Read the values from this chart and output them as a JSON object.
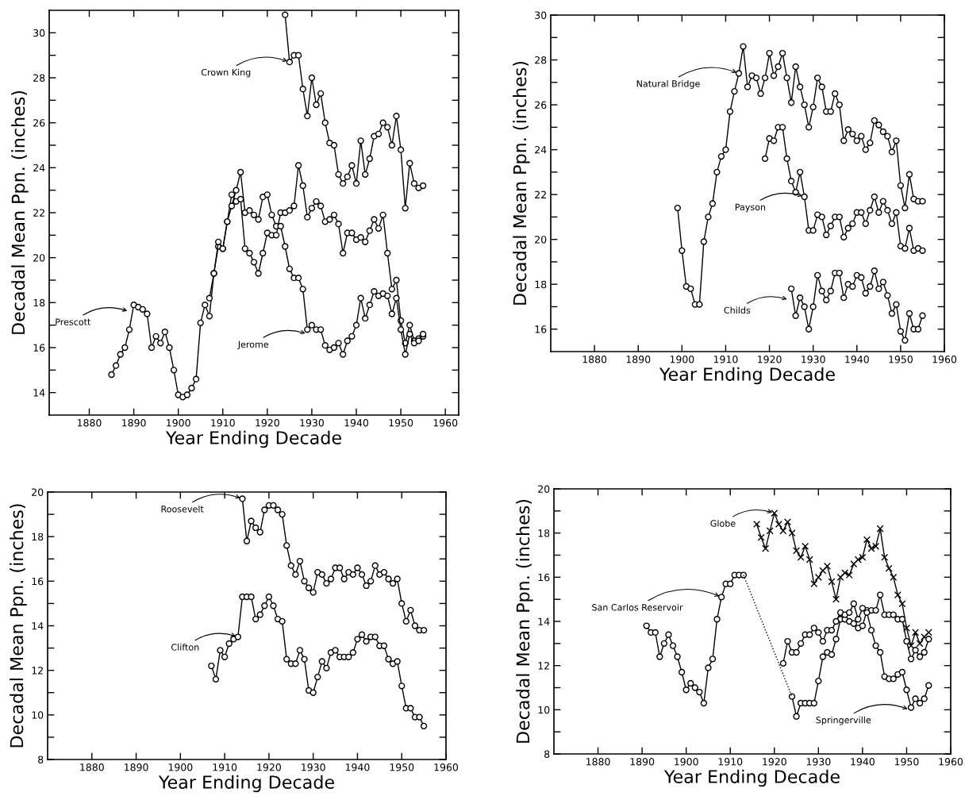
{
  "chart_data": [
    {
      "type": "line",
      "xlabel": "Year Ending Decade",
      "ylabel": "Decadal Mean Ppn. (inches)",
      "marker": "circle",
      "grid": false,
      "xlim": [
        1871,
        1963
      ],
      "xticks": [
        1880,
        1890,
        1900,
        1910,
        1920,
        1930,
        1940,
        1950,
        1960
      ],
      "ylim": [
        13,
        31
      ],
      "yticks": [
        14,
        {
          "value": 15,
          "label": null
        },
        16,
        {
          "value": 17,
          "label": null
        },
        18,
        {
          "value": 19,
          "label": null
        },
        20,
        {
          "value": 21,
          "label": null
        },
        22,
        {
          "value": 23,
          "label": null
        },
        24,
        {
          "value": 25,
          "label": null
        },
        26,
        {
          "value": 27,
          "label": null
        },
        28,
        {
          "value": 29,
          "label": null
        },
        30
      ],
      "series": [
        {
          "color": "#000000",
          "x": [
            1885,
            1886,
            1887,
            1888,
            1889,
            1890,
            1891,
            1892,
            1893,
            1894,
            1895,
            1896,
            1897,
            1898,
            1899,
            1900,
            1901,
            1902,
            1903,
            1904,
            1905,
            1906,
            1907,
            1908,
            1909,
            1910,
            1911,
            1912,
            1913,
            1914,
            1915,
            1916,
            1917,
            1918,
            1919,
            1920,
            1921,
            1922,
            1923,
            1924,
            1925,
            1926,
            1927,
            1928,
            1929,
            1930,
            1931,
            1932,
            1933,
            1934,
            1935,
            1936,
            1937,
            1938,
            1939,
            1940,
            1941,
            1942,
            1943,
            1944,
            1945,
            1946,
            1947,
            1948,
            1949,
            1950,
            1951,
            1952,
            1953,
            1954,
            1955
          ],
          "values": [
            14.8,
            15.2,
            15.7,
            16.0,
            16.8,
            17.9,
            17.8,
            17.7,
            17.5,
            16.0,
            16.5,
            16.2,
            16.7,
            16.0,
            15.0,
            13.9,
            13.8,
            13.9,
            14.2,
            14.6,
            17.1,
            17.9,
            17.4,
            19.3,
            20.5,
            20.4,
            21.6,
            22.8,
            22.5,
            22.6,
            20.4,
            20.2,
            19.8,
            19.3,
            20.2,
            21.1,
            21.0,
            21.0,
            22.0,
            22.0,
            22.1,
            22.3,
            24.1,
            23.2,
            21.8,
            22.2,
            22.5,
            22.3,
            21.6,
            21.7,
            21.9,
            21.5,
            20.2,
            21.1,
            21.1,
            20.8,
            20.9,
            20.7,
            21.2,
            21.7,
            21.3,
            21.9,
            20.2,
            18.6,
            19.0,
            17.2,
            16.2,
            17.0,
            16.3,
            16.4,
            16.5
          ]
        },
        {
          "color": "#000000",
          "x": [
            1907,
            1908,
            1909,
            1910,
            1911,
            1912,
            1913,
            1914,
            1915,
            1916,
            1917,
            1918,
            1919,
            1920,
            1921,
            1922,
            1923,
            1924,
            1925,
            1926,
            1927,
            1928,
            1929,
            1930,
            1931,
            1932,
            1933,
            1934,
            1935,
            1936,
            1937,
            1938,
            1939,
            1940,
            1941,
            1942,
            1943,
            1944,
            1945,
            1946,
            1947,
            1948,
            1949,
            1950,
            1951,
            1952,
            1953,
            1954,
            1955
          ],
          "values": [
            18.2,
            19.3,
            20.7,
            20.4,
            21.6,
            22.3,
            23.0,
            23.8,
            22.0,
            22.1,
            21.9,
            21.7,
            22.7,
            22.8,
            21.9,
            21.4,
            21.4,
            20.5,
            19.5,
            19.1,
            19.1,
            18.6,
            16.8,
            17.0,
            16.8,
            16.8,
            16.1,
            15.9,
            16.0,
            16.2,
            15.7,
            16.3,
            16.5,
            17.0,
            18.2,
            17.3,
            17.9,
            18.5,
            18.3,
            18.4,
            18.3,
            17.5,
            18.2,
            16.8,
            15.7,
            16.6,
            16.2,
            16.3,
            16.6
          ]
        },
        {
          "color": "#000000",
          "x": [
            1924,
            1925,
            1926,
            1927,
            1928,
            1929,
            1930,
            1931,
            1932,
            1933,
            1934,
            1935,
            1936,
            1937,
            1938,
            1939,
            1940,
            1941,
            1942,
            1943,
            1944,
            1945,
            1946,
            1947,
            1948,
            1949,
            1950,
            1951,
            1952,
            1953,
            1954,
            1955
          ],
          "values": [
            30.8,
            28.7,
            29.0,
            29.0,
            27.5,
            26.3,
            28.0,
            26.8,
            27.3,
            26.0,
            25.1,
            25.0,
            23.7,
            23.3,
            23.6,
            24.1,
            23.3,
            25.2,
            23.7,
            24.4,
            25.4,
            25.5,
            26.0,
            25.8,
            25.0,
            26.3,
            24.8,
            22.2,
            24.2,
            23.3,
            23.1,
            23.2
          ]
        }
      ],
      "annotations": [
        {
          "text": "Prescott",
          "x": 1889,
          "y": 17.6
        },
        {
          "text": "Crown King",
          "x": 1925,
          "y": 28.7
        },
        {
          "text": "Jerome",
          "x": 1929,
          "y": 16.6
        }
      ]
    },
    {
      "type": "line",
      "xlabel": "Year Ending Decade",
      "ylabel": "Decadal Mean Ppn. (inches)",
      "marker": "circle",
      "grid": false,
      "xlim": [
        1870,
        1960
      ],
      "xticks": [
        1880,
        1890,
        1900,
        1910,
        1920,
        1930,
        1940,
        1950,
        1960
      ],
      "ylim": [
        15,
        30
      ],
      "yticks": [
        16,
        {
          "value": 17,
          "label": null
        },
        18,
        {
          "value": 19,
          "label": null
        },
        20,
        {
          "value": 21,
          "label": null
        },
        22,
        {
          "value": 23,
          "label": null
        },
        24,
        {
          "value": 25,
          "label": null
        },
        26,
        {
          "value": 27,
          "label": null
        },
        28,
        {
          "value": 29,
          "label": null
        },
        30
      ],
      "series": [
        {
          "color": "#000000",
          "x": [
            1899,
            1900,
            1901,
            1902,
            1903,
            1904,
            1905,
            1906,
            1907,
            1908,
            1909,
            1910,
            1911,
            1912,
            1913,
            1914,
            1915,
            1916,
            1917,
            1918,
            1919,
            1920,
            1921,
            1922,
            1923,
            1924,
            1925,
            1926,
            1927,
            1928,
            1929,
            1930,
            1931,
            1932,
            1933,
            1934,
            1935,
            1936,
            1937,
            1938,
            1939,
            1940,
            1941,
            1942,
            1943,
            1944,
            1945,
            1946,
            1947,
            1948,
            1949,
            1950,
            1951,
            1952,
            1953,
            1954,
            1955
          ],
          "values": [
            21.4,
            19.5,
            17.9,
            17.8,
            17.1,
            17.1,
            19.9,
            21.0,
            21.6,
            23.0,
            23.7,
            24.0,
            25.7,
            26.6,
            27.4,
            28.6,
            26.8,
            27.3,
            27.2,
            26.5,
            27.2,
            28.3,
            27.3,
            27.7,
            28.3,
            27.2,
            26.1,
            27.7,
            26.8,
            26.0,
            25.0,
            25.9,
            27.2,
            26.8,
            25.7,
            25.7,
            26.5,
            26.0,
            24.4,
            24.9,
            24.7,
            24.4,
            24.6,
            24.0,
            24.3,
            25.3,
            25.1,
            24.8,
            24.6,
            23.9,
            24.4,
            22.4,
            21.4,
            22.9,
            21.8,
            21.7,
            21.7
          ]
        },
        {
          "color": "#000000",
          "x": [
            1919,
            1920,
            1921,
            1922,
            1923,
            1924,
            1925,
            1926,
            1927,
            1928,
            1929,
            1930,
            1931,
            1932,
            1933,
            1934,
            1935,
            1936,
            1937,
            1938,
            1939,
            1940,
            1941,
            1942,
            1943,
            1944,
            1945,
            1946,
            1947,
            1948,
            1949,
            1950,
            1951,
            1952,
            1953,
            1954,
            1955
          ],
          "values": [
            23.6,
            24.5,
            24.4,
            25.0,
            25.0,
            23.6,
            22.6,
            22.1,
            23.0,
            21.9,
            20.4,
            20.4,
            21.1,
            21.0,
            20.2,
            20.6,
            21.0,
            21.0,
            20.1,
            20.5,
            20.7,
            21.2,
            21.2,
            20.7,
            21.3,
            21.9,
            21.2,
            21.7,
            21.3,
            20.7,
            21.2,
            19.7,
            19.6,
            20.5,
            19.5,
            19.6,
            19.5
          ]
        },
        {
          "color": "#000000",
          "x": [
            1925,
            1926,
            1927,
            1928,
            1929,
            1930,
            1931,
            1932,
            1933,
            1934,
            1935,
            1936,
            1937,
            1938,
            1939,
            1940,
            1941,
            1942,
            1943,
            1944,
            1945,
            1946,
            1947,
            1948,
            1949,
            1950,
            1951,
            1952,
            1953,
            1954,
            1955
          ],
          "values": [
            17.8,
            16.6,
            17.4,
            17.0,
            16.0,
            17.0,
            18.4,
            17.7,
            17.3,
            17.7,
            18.5,
            18.5,
            17.4,
            18.0,
            17.9,
            18.4,
            18.3,
            17.6,
            17.9,
            18.6,
            17.8,
            18.1,
            17.5,
            16.7,
            17.1,
            15.9,
            15.5,
            16.7,
            16.0,
            16.0,
            16.6
          ]
        }
      ],
      "annotations": [
        {
          "text": "Natural Bridge",
          "x": 1913,
          "y": 27.4
        },
        {
          "text": "Payson",
          "x": 1928,
          "y": 21.9
        },
        {
          "text": "Childs",
          "x": 1924.5,
          "y": 17.3
        }
      ]
    },
    {
      "type": "line",
      "xlabel": "Year Ending Decade",
      "ylabel": "Decadal Mean Ppn. (inches)",
      "marker": "circle",
      "grid": false,
      "xlim": [
        1870,
        1960
      ],
      "xticks": [
        1880,
        1890,
        1900,
        1910,
        1920,
        1930,
        1940,
        1950,
        1960
      ],
      "ylim": [
        8,
        20
      ],
      "yticks": [
        8,
        {
          "value": 9,
          "label": null
        },
        10,
        {
          "value": 11,
          "label": null
        },
        12,
        {
          "value": 13,
          "label": null
        },
        14,
        {
          "value": 15,
          "label": null
        },
        16,
        {
          "value": 17,
          "label": null
        },
        18,
        {
          "value": 19,
          "label": null
        },
        20
      ],
      "series": [
        {
          "color": "#000000",
          "x": [
            1914,
            1915,
            1916,
            1917,
            1918,
            1919,
            1920,
            1921,
            1922,
            1923,
            1924,
            1925,
            1926,
            1927,
            1928,
            1929,
            1930,
            1931,
            1932,
            1933,
            1934,
            1935,
            1936,
            1937,
            1938,
            1939,
            1940,
            1941,
            1942,
            1943,
            1944,
            1945,
            1946,
            1947,
            1948,
            1949,
            1950,
            1951,
            1952,
            1953,
            1954,
            1955
          ],
          "values": [
            19.7,
            17.8,
            18.7,
            18.4,
            18.2,
            19.2,
            19.4,
            19.4,
            19.2,
            19.0,
            17.6,
            16.7,
            16.3,
            16.9,
            16.0,
            15.7,
            15.5,
            16.4,
            16.3,
            15.9,
            16.1,
            16.6,
            16.6,
            16.1,
            16.4,
            16.3,
            16.6,
            16.3,
            15.8,
            16.0,
            16.7,
            16.3,
            16.4,
            16.1,
            15.9,
            16.1,
            15.0,
            14.2,
            14.7,
            14.0,
            13.8,
            13.8
          ]
        },
        {
          "color": "#000000",
          "x": [
            1907,
            1908,
            1909,
            1910,
            1911,
            1912,
            1913,
            1914,
            1915,
            1916,
            1917,
            1918,
            1919,
            1920,
            1921,
            1922,
            1923,
            1924,
            1925,
            1926,
            1927,
            1928,
            1929,
            1930,
            1931,
            1932,
            1933,
            1934,
            1935,
            1936,
            1937,
            1938,
            1939,
            1940,
            1941,
            1942,
            1943,
            1944,
            1945,
            1946,
            1947,
            1948,
            1949,
            1950,
            1951,
            1952,
            1953,
            1954,
            1955
          ],
          "values": [
            12.2,
            11.6,
            12.9,
            12.6,
            13.2,
            13.4,
            13.5,
            15.3,
            15.3,
            15.3,
            14.3,
            14.5,
            14.9,
            15.3,
            14.9,
            14.3,
            14.2,
            12.5,
            12.3,
            12.3,
            12.9,
            12.5,
            11.1,
            11.0,
            11.7,
            12.4,
            12.1,
            12.8,
            12.9,
            12.6,
            12.6,
            12.6,
            12.8,
            13.4,
            13.6,
            13.3,
            13.5,
            13.5,
            13.1,
            13.1,
            12.5,
            12.3,
            12.4,
            11.3,
            10.3,
            10.3,
            9.9,
            9.9,
            9.5
          ]
        }
      ],
      "annotations": [
        {
          "text": "Roosevelt",
          "x": 1914,
          "y": 19.7
        },
        {
          "text": "Clifton",
          "x": 1913,
          "y": 13.5
        }
      ]
    },
    {
      "type": "line",
      "xlabel": "Year Ending Decade",
      "ylabel": "Decadal Mean Ppn. (inches)",
      "marker": "circle",
      "grid": false,
      "xlim": [
        1870,
        1960
      ],
      "xticks": [
        1880,
        1890,
        1900,
        1910,
        1920,
        1930,
        1940,
        1950,
        1960
      ],
      "ylim": [
        8,
        20
      ],
      "yticks": [
        8,
        {
          "value": 9,
          "label": null
        },
        10,
        {
          "value": 11,
          "label": null
        },
        12,
        {
          "value": 13,
          "label": null
        },
        14,
        {
          "value": 15,
          "label": null
        },
        16,
        {
          "value": 17,
          "label": null
        },
        18,
        {
          "value": 19,
          "label": null
        },
        20
      ],
      "series": [
        {
          "color": "#000000",
          "marker": "cross",
          "x": [
            1916,
            1917,
            1918,
            1919,
            1920,
            1921,
            1922,
            1923,
            1924,
            1925,
            1926,
            1927,
            1928,
            1929,
            1930,
            1931,
            1932,
            1933,
            1934,
            1935,
            1936,
            1937,
            1938,
            1939,
            1940,
            1941,
            1942,
            1943,
            1944,
            1945,
            1946,
            1947,
            1948,
            1949,
            1950,
            1951,
            1952,
            1953,
            1954,
            1955
          ],
          "values": [
            18.4,
            17.8,
            17.3,
            18.1,
            18.9,
            18.4,
            18.1,
            18.5,
            18.0,
            17.2,
            16.9,
            17.4,
            16.8,
            15.7,
            16.0,
            16.3,
            16.5,
            15.8,
            15.0,
            16.0,
            16.2,
            16.1,
            16.6,
            16.8,
            16.9,
            17.7,
            17.3,
            17.4,
            18.2,
            16.9,
            16.4,
            16.0,
            15.2,
            14.8,
            13.7,
            12.9,
            13.5,
            13.0,
            13.3,
            13.5
          ]
        },
        {
          "color": "#000000",
          "x": [
            1891,
            1892,
            1893,
            1894,
            1895,
            1896,
            1897,
            1898,
            1899,
            1900,
            1901,
            1902,
            1903,
            1904,
            1905,
            1906,
            1907,
            1908,
            1909,
            1910,
            1911,
            1912,
            1913
          ],
          "values": [
            13.8,
            13.5,
            13.5,
            12.4,
            13.0,
            13.4,
            12.9,
            12.4,
            11.7,
            10.9,
            11.2,
            11.0,
            10.8,
            10.3,
            11.9,
            12.3,
            14.1,
            15.1,
            15.7,
            15.7,
            16.1,
            16.1,
            16.1
          ]
        },
        {
          "color": "#000000",
          "x": [
            1924,
            1925,
            1926,
            1927,
            1928,
            1929,
            1930,
            1931,
            1932,
            1933,
            1934,
            1935,
            1936,
            1937,
            1938,
            1939,
            1940,
            1941,
            1942,
            1943,
            1944,
            1945,
            1946,
            1947,
            1948,
            1949,
            1950,
            1951,
            1952,
            1953,
            1954,
            1955
          ],
          "values": [
            10.6,
            9.7,
            10.3,
            10.3,
            10.3,
            10.3,
            11.3,
            12.4,
            12.6,
            12.5,
            13.2,
            14.1,
            14.1,
            14.0,
            13.9,
            13.7,
            13.8,
            14.5,
            14.5,
            14.5,
            15.2,
            14.3,
            14.3,
            14.3,
            14.1,
            14.1,
            13.1,
            12.3,
            12.7,
            12.4,
            12.6,
            13.2
          ]
        },
        {
          "color": "#000000",
          "x": [
            1922,
            1923,
            1924,
            1925,
            1926,
            1927,
            1928,
            1929,
            1930,
            1931,
            1932,
            1933,
            1934,
            1935,
            1936,
            1937,
            1938,
            1939,
            1940,
            1941,
            1942,
            1943,
            1944,
            1945,
            1946,
            1947,
            1948,
            1949,
            1950,
            1951,
            1952,
            1953,
            1954,
            1955
          ],
          "values": [
            12.1,
            13.1,
            12.6,
            12.6,
            13.0,
            13.4,
            13.4,
            13.7,
            13.5,
            13.1,
            13.6,
            13.6,
            14.0,
            14.4,
            14.3,
            14.4,
            14.8,
            14.1,
            14.6,
            14.4,
            13.6,
            12.9,
            12.6,
            11.5,
            11.4,
            11.4,
            11.6,
            11.7,
            10.9,
            10.1,
            10.5,
            10.3,
            10.5,
            11.1
          ]
        },
        {
          "color": "#000000",
          "marker": "none",
          "line_style": "dotted",
          "x": [
            1913,
            1924
          ],
          "values": [
            16.1,
            10.6
          ]
        }
      ],
      "annotations": [
        {
          "text": "Globe",
          "x": 1920,
          "y": 18.9
        },
        {
          "text": "San Carlos Reservoir",
          "x": 1908,
          "y": 15.1
        },
        {
          "text": "Springerville",
          "x": 1950.7,
          "y": 10.0
        }
      ]
    }
  ]
}
